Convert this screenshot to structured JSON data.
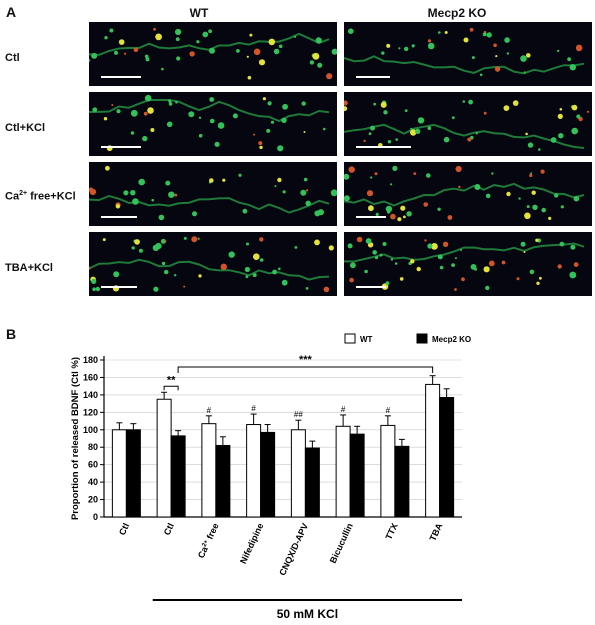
{
  "panel_a": {
    "letter": "A",
    "columns": [
      "WT",
      "Mecp2 KO"
    ],
    "rows": [
      {
        "label": "Ctl"
      },
      {
        "label": "Ctl+KCl"
      },
      {
        "label": "Ca2+ free+KCl",
        "label_main": "Ca",
        "label_sup": "2+",
        "label_rest": " free+KCl"
      },
      {
        "label": "TBA+KCl"
      }
    ]
  },
  "panel_b": {
    "letter": "B",
    "footer_label": "50 mM KCl",
    "sig_ctl_pair": "**",
    "sig_long": "***",
    "legend_position": "top-right"
  },
  "chart_data": {
    "type": "bar",
    "ylabel": "Proportion of released BDNF (Ctl %)",
    "ylim": [
      0,
      180
    ],
    "yticks": [
      0,
      20,
      40,
      60,
      80,
      100,
      120,
      140,
      160,
      180
    ],
    "grid": true,
    "categories": [
      "Ctl",
      "Ctl",
      "Ca2+ free",
      "Nifedipine",
      "CNQX/D-APV",
      "Bicucullin",
      "TTX",
      "TBA"
    ],
    "series": [
      {
        "name": "WT",
        "color": "#ffffff",
        "values": [
          100,
          135,
          107,
          106,
          100,
          104,
          105,
          152
        ],
        "errors": [
          8,
          8,
          9,
          12,
          11,
          13,
          11,
          10
        ]
      },
      {
        "name": "Mecp2 KO",
        "color": "#000000",
        "values": [
          100,
          93,
          82,
          97,
          79,
          95,
          81,
          137
        ],
        "errors": [
          7,
          6,
          10,
          9,
          8,
          9,
          8,
          10
        ]
      }
    ],
    "annotations": [
      "",
      "",
      "#",
      "#",
      "##",
      "#",
      "#",
      ""
    ]
  }
}
